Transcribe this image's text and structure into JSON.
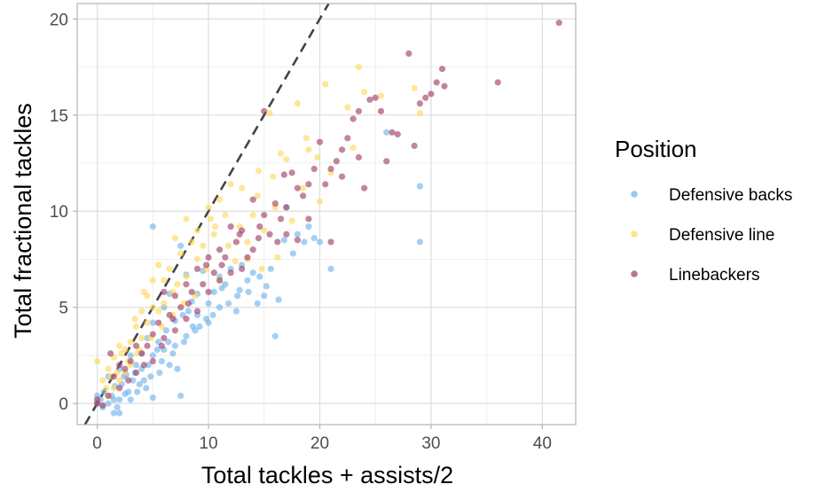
{
  "chart_data": {
    "type": "scatter",
    "title": "",
    "xlabel": "Total tackles + assists/2",
    "ylabel": "Total fractional tackles",
    "xlim": [
      -1.8,
      43.0
    ],
    "ylim": [
      -1.1,
      20.8
    ],
    "xticks": [
      0,
      10,
      20,
      30,
      40
    ],
    "yticks": [
      0,
      5,
      10,
      15,
      20
    ],
    "grid": true,
    "reference_line": {
      "style": "dashed",
      "slope": 1,
      "intercept": 0,
      "color": "#444444"
    },
    "legend": {
      "title": "Position",
      "placement": "right",
      "entries": [
        {
          "name": "Defensive backs",
          "color": "#6CB2EC"
        },
        {
          "name": "Defensive line",
          "color": "#FFD659"
        },
        {
          "name": "Linebackers",
          "color": "#9E3A63"
        }
      ]
    },
    "series": [
      {
        "name": "Defensive backs",
        "color": "#6CB2EC",
        "points": [
          [
            5.0,
            9.2
          ],
          [
            29.0,
            11.3
          ],
          [
            29.0,
            8.4
          ],
          [
            26.0,
            14.1
          ],
          [
            21.0,
            7.0
          ],
          [
            20.0,
            8.4
          ],
          [
            19.5,
            8.6
          ],
          [
            19.0,
            9.2
          ],
          [
            18.0,
            8.8
          ],
          [
            17.0,
            10.2
          ],
          [
            16.8,
            8.5
          ],
          [
            16.3,
            5.4
          ],
          [
            16.0,
            3.5
          ],
          [
            15.2,
            6.1
          ],
          [
            15.0,
            5.6
          ],
          [
            14.6,
            6.6
          ],
          [
            14.0,
            6.8
          ],
          [
            13.5,
            6.4
          ],
          [
            13.0,
            7.2
          ],
          [
            12.8,
            5.9
          ],
          [
            12.5,
            4.8
          ],
          [
            12.0,
            7.0
          ],
          [
            11.5,
            6.2
          ],
          [
            11.0,
            6.6
          ],
          [
            11.0,
            5.0
          ],
          [
            10.5,
            5.8
          ],
          [
            10.0,
            5.2
          ],
          [
            10.0,
            4.2
          ],
          [
            9.5,
            6.9
          ],
          [
            9.0,
            4.6
          ],
          [
            9.0,
            5.7
          ],
          [
            8.6,
            4.0
          ],
          [
            8.5,
            5.3
          ],
          [
            8.0,
            6.7
          ],
          [
            8.0,
            3.5
          ],
          [
            7.7,
            4.6
          ],
          [
            7.5,
            8.2
          ],
          [
            7.5,
            0.4
          ],
          [
            7.0,
            4.3
          ],
          [
            7.0,
            3.0
          ],
          [
            6.5,
            5.7
          ],
          [
            6.5,
            2.0
          ],
          [
            6.2,
            3.8
          ],
          [
            6.0,
            2.8
          ],
          [
            6.0,
            5.0
          ],
          [
            5.6,
            1.6
          ],
          [
            5.5,
            3.2
          ],
          [
            5.0,
            0.3
          ],
          [
            5.0,
            4.2
          ],
          [
            5.0,
            2.5
          ],
          [
            4.6,
            2.0
          ],
          [
            4.5,
            3.4
          ],
          [
            4.2,
            1.2
          ],
          [
            4.0,
            2.6
          ],
          [
            4.0,
            1.8
          ],
          [
            3.6,
            0.6
          ],
          [
            3.5,
            2.0
          ],
          [
            3.2,
            1.2
          ],
          [
            3.0,
            2.5
          ],
          [
            3.0,
            0.2
          ],
          [
            2.6,
            1.5
          ],
          [
            2.5,
            0.5
          ],
          [
            2.2,
            1.0
          ],
          [
            2.0,
            1.8
          ],
          [
            2.0,
            0.2
          ],
          [
            1.6,
            0.9
          ],
          [
            1.5,
            -0.5
          ],
          [
            1.3,
            0.4
          ],
          [
            1.0,
            1.4
          ],
          [
            1.0,
            0.0
          ],
          [
            0.6,
            0.6
          ],
          [
            0.5,
            -0.2
          ],
          [
            0.3,
            0.2
          ],
          [
            0.0,
            0.0
          ],
          [
            0.0,
            0.4
          ],
          [
            1.5,
            0.2
          ],
          [
            2.8,
            0.6
          ],
          [
            3.8,
            1.0
          ],
          [
            4.8,
            1.4
          ],
          [
            5.8,
            2.2
          ],
          [
            6.8,
            2.6
          ],
          [
            7.8,
            3.2
          ],
          [
            8.8,
            3.8
          ],
          [
            9.8,
            4.4
          ],
          [
            11.8,
            5.2
          ],
          [
            12.6,
            5.6
          ],
          [
            13.6,
            5.8
          ],
          [
            15.6,
            7.0
          ],
          [
            17.6,
            7.8
          ],
          [
            18.6,
            8.4
          ],
          [
            1.8,
            -0.2
          ],
          [
            2.4,
            1.4
          ],
          [
            3.4,
            1.6
          ],
          [
            4.4,
            0.8
          ],
          [
            5.4,
            2.8
          ],
          [
            6.4,
            3.2
          ],
          [
            7.2,
            1.8
          ],
          [
            8.2,
            4.8
          ],
          [
            9.2,
            4.0
          ],
          [
            10.4,
            4.6
          ],
          [
            11.2,
            6.0
          ],
          [
            14.4,
            5.2
          ],
          [
            2.0,
            -0.5
          ]
        ]
      },
      {
        "name": "Defensive line",
        "color": "#FFD659",
        "points": [
          [
            23.5,
            17.5
          ],
          [
            20.5,
            16.6
          ],
          [
            15.5,
            15.1
          ],
          [
            18.0,
            15.6
          ],
          [
            24.0,
            16.2
          ],
          [
            25.5,
            16.0
          ],
          [
            28.5,
            16.4
          ],
          [
            29.0,
            15.1
          ],
          [
            22.5,
            15.4
          ],
          [
            21.0,
            12.0
          ],
          [
            19.0,
            13.2
          ],
          [
            17.0,
            12.7
          ],
          [
            16.5,
            13.0
          ],
          [
            15.8,
            11.8
          ],
          [
            14.5,
            12.1
          ],
          [
            13.0,
            11.2
          ],
          [
            12.0,
            11.4
          ],
          [
            11.5,
            9.8
          ],
          [
            11.0,
            10.6
          ],
          [
            10.5,
            8.8
          ],
          [
            10.2,
            9.6
          ],
          [
            10.0,
            10.2
          ],
          [
            9.5,
            8.2
          ],
          [
            9.0,
            9.0
          ],
          [
            9.0,
            7.5
          ],
          [
            8.5,
            8.4
          ],
          [
            8.0,
            9.6
          ],
          [
            8.0,
            6.6
          ],
          [
            7.5,
            7.8
          ],
          [
            7.2,
            6.2
          ],
          [
            7.0,
            8.6
          ],
          [
            6.8,
            5.8
          ],
          [
            6.5,
            7.0
          ],
          [
            6.0,
            6.4
          ],
          [
            6.0,
            5.2
          ],
          [
            5.5,
            7.2
          ],
          [
            5.5,
            4.8
          ],
          [
            5.0,
            6.4
          ],
          [
            5.0,
            5.0
          ],
          [
            4.5,
            4.2
          ],
          [
            4.5,
            5.6
          ],
          [
            4.0,
            3.4
          ],
          [
            4.0,
            4.8
          ],
          [
            3.6,
            2.6
          ],
          [
            3.5,
            4.0
          ],
          [
            3.0,
            3.2
          ],
          [
            3.0,
            2.0
          ],
          [
            2.5,
            2.8
          ],
          [
            2.5,
            1.6
          ],
          [
            2.0,
            3.0
          ],
          [
            2.0,
            1.2
          ],
          [
            1.5,
            2.4
          ],
          [
            1.5,
            0.8
          ],
          [
            1.0,
            1.8
          ],
          [
            1.0,
            0.4
          ],
          [
            0.5,
            1.2
          ],
          [
            0.0,
            2.2
          ],
          [
            11.8,
            8.2
          ],
          [
            12.8,
            9.2
          ],
          [
            13.5,
            8.4
          ],
          [
            14.0,
            9.8
          ],
          [
            13.5,
            7.5
          ],
          [
            15.0,
            9.0
          ],
          [
            16.0,
            10.2
          ],
          [
            17.5,
            9.5
          ],
          [
            18.5,
            11.2
          ],
          [
            20.0,
            10.5
          ],
          [
            16.2,
            7.6
          ],
          [
            14.8,
            7.0
          ],
          [
            12.4,
            7.4
          ],
          [
            11.0,
            6.4
          ],
          [
            9.8,
            7.0
          ],
          [
            8.8,
            5.6
          ],
          [
            7.8,
            5.2
          ],
          [
            6.8,
            4.6
          ],
          [
            5.8,
            4.0
          ],
          [
            4.8,
            3.4
          ],
          [
            3.8,
            2.8
          ],
          [
            2.8,
            2.2
          ],
          [
            1.8,
            1.6
          ],
          [
            0.8,
            0.8
          ],
          [
            23.0,
            13.3
          ],
          [
            19.8,
            12.8
          ],
          [
            18.8,
            13.8
          ],
          [
            14.4,
            10.8
          ],
          [
            10.6,
            9.2
          ],
          [
            4.2,
            5.8
          ],
          [
            3.4,
            4.4
          ],
          [
            2.2,
            2.6
          ],
          [
            1.2,
            1.4
          ]
        ]
      },
      {
        "name": "Linebackers",
        "color": "#9E3A63",
        "points": [
          [
            41.5,
            19.8
          ],
          [
            36.0,
            16.7
          ],
          [
            31.2,
            16.5
          ],
          [
            31.0,
            17.4
          ],
          [
            30.5,
            16.7
          ],
          [
            30.0,
            16.1
          ],
          [
            29.5,
            15.9
          ],
          [
            29.0,
            15.6
          ],
          [
            28.0,
            18.2
          ],
          [
            28.5,
            13.4
          ],
          [
            27.0,
            14.0
          ],
          [
            26.5,
            14.1
          ],
          [
            26.0,
            12.6
          ],
          [
            25.5,
            15.2
          ],
          [
            25.0,
            15.9
          ],
          [
            24.5,
            15.8
          ],
          [
            23.5,
            15.2
          ],
          [
            23.0,
            14.8
          ],
          [
            22.5,
            13.8
          ],
          [
            22.0,
            13.2
          ],
          [
            22.0,
            11.8
          ],
          [
            21.5,
            12.6
          ],
          [
            21.0,
            12.2
          ],
          [
            20.5,
            11.4
          ],
          [
            20.0,
            13.6
          ],
          [
            19.5,
            12.2
          ],
          [
            19.0,
            11.4
          ],
          [
            19.0,
            9.6
          ],
          [
            18.5,
            10.8
          ],
          [
            18.0,
            11.2
          ],
          [
            17.5,
            12.0
          ],
          [
            17.0,
            10.2
          ],
          [
            17.0,
            8.8
          ],
          [
            16.5,
            9.6
          ],
          [
            16.2,
            8.4
          ],
          [
            16.0,
            10.4
          ],
          [
            15.0,
            15.2
          ],
          [
            15.5,
            8.8
          ],
          [
            15.0,
            9.8
          ],
          [
            14.5,
            8.6
          ],
          [
            14.0,
            10.6
          ],
          [
            14.0,
            8.0
          ],
          [
            13.5,
            7.6
          ],
          [
            13.0,
            9.0
          ],
          [
            13.0,
            7.0
          ],
          [
            12.5,
            8.4
          ],
          [
            12.0,
            6.8
          ],
          [
            12.0,
            9.2
          ],
          [
            11.5,
            7.6
          ],
          [
            11.0,
            8.0
          ],
          [
            11.0,
            6.4
          ],
          [
            10.5,
            6.8
          ],
          [
            10.0,
            7.6
          ],
          [
            10.0,
            5.8
          ],
          [
            9.5,
            6.2
          ],
          [
            9.0,
            7.0
          ],
          [
            9.0,
            4.8
          ],
          [
            8.5,
            5.8
          ],
          [
            8.0,
            6.2
          ],
          [
            8.0,
            4.4
          ],
          [
            7.5,
            5.0
          ],
          [
            7.0,
            5.6
          ],
          [
            7.0,
            3.8
          ],
          [
            6.5,
            4.6
          ],
          [
            6.0,
            5.8
          ],
          [
            6.0,
            3.4
          ],
          [
            5.5,
            4.2
          ],
          [
            5.0,
            3.6
          ],
          [
            5.0,
            2.2
          ],
          [
            4.5,
            3.0
          ],
          [
            4.0,
            2.6
          ],
          [
            3.5,
            3.0
          ],
          [
            3.5,
            1.6
          ],
          [
            3.0,
            2.2
          ],
          [
            2.5,
            1.8
          ],
          [
            2.0,
            2.0
          ],
          [
            2.0,
            0.8
          ],
          [
            1.5,
            1.4
          ],
          [
            1.0,
            0.4
          ],
          [
            1.2,
            2.6
          ],
          [
            0.0,
            0.2
          ],
          [
            0.0,
            0.0
          ],
          [
            0.5,
            -0.1
          ],
          [
            18.0,
            8.5
          ],
          [
            21.0,
            8.4
          ],
          [
            23.5,
            12.8
          ],
          [
            24.0,
            11.2
          ],
          [
            16.8,
            11.9
          ],
          [
            14.6,
            9.2
          ],
          [
            12.8,
            8.8
          ],
          [
            11.2,
            7.2
          ],
          [
            9.8,
            7.2
          ],
          [
            8.2,
            5.2
          ],
          [
            6.8,
            4.4
          ],
          [
            5.8,
            3.0
          ],
          [
            4.2,
            2.0
          ],
          [
            2.8,
            1.2
          ]
        ]
      }
    ]
  }
}
